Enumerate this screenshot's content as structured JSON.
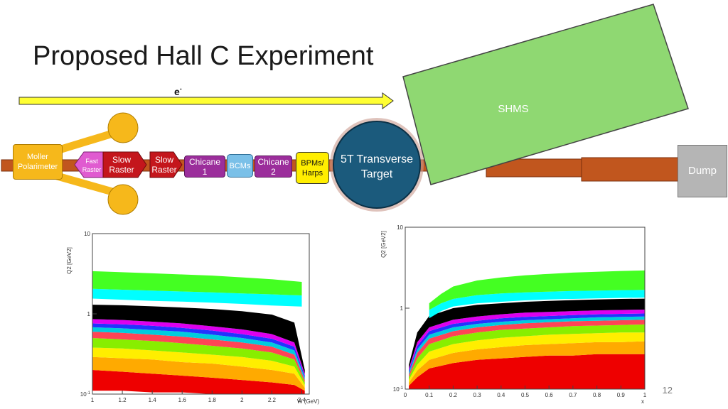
{
  "title": "Proposed Hall C Experiment",
  "beam": {
    "label": "e",
    "charge": "-"
  },
  "shms": {
    "label": "SHMS",
    "color": "#8fd872"
  },
  "components": {
    "moller": "Moller\nPolarimeter",
    "fast_raster": "Fast\nRaster",
    "slow_raster_1": "Slow\nRaster",
    "slow_raster_2": "Slow\nRaster",
    "chicane_1": "Chicane\n1",
    "bcms": "BCMs",
    "chicane_2": "Chicane\n2",
    "bpms": "BPMs/\nHarps",
    "target": "5T Transverse\nTarget",
    "dump": "Dump"
  },
  "colors": {
    "beamline": "#c1561e",
    "moller": "#f6b81b",
    "raster_pink": "#e05bd0",
    "raster_red": "#c4161c",
    "chicane": "#9b2e9b",
    "bcms": "#7ac0e8",
    "bpms": "#ffee00",
    "target": "#1b5a7c",
    "dump": "#b5b5b5",
    "beam_arrow": "#ffff33"
  },
  "slide_number": "12",
  "chart_data": [
    {
      "type": "scatter",
      "xlabel": "W (GeV)",
      "ylabel": "Q2 [GeV2]",
      "xlim": [
        1,
        2.45
      ],
      "ylim": [
        0.1,
        10
      ],
      "yscale": "log",
      "xticks": [
        "1",
        "1.2",
        "1.4",
        "1.6",
        "1.8",
        "2",
        "2.2",
        "2.4"
      ],
      "yticks": [
        "10",
        "1",
        "10-1"
      ],
      "bands": [
        {
          "color": "#ee0000",
          "x": [
            1.0,
            1.2,
            1.4,
            1.6,
            1.8,
            2.0,
            2.2,
            2.35,
            2.42
          ],
          "lower": [
            0.11,
            0.11,
            0.105,
            0.105,
            0.1,
            0.1,
            0.1,
            0.1,
            0.1
          ],
          "upper": [
            0.2,
            0.19,
            0.18,
            0.17,
            0.16,
            0.15,
            0.14,
            0.13,
            0.11
          ]
        },
        {
          "color": "#ffaa00",
          "x": [
            1.0,
            1.2,
            1.4,
            1.6,
            1.8,
            2.0,
            2.2,
            2.35,
            2.42
          ],
          "lower": [
            0.2,
            0.19,
            0.18,
            0.17,
            0.16,
            0.15,
            0.14,
            0.13,
            0.11
          ],
          "upper": [
            0.29,
            0.28,
            0.27,
            0.25,
            0.24,
            0.22,
            0.2,
            0.18,
            0.12
          ]
        },
        {
          "color": "#ffee00",
          "x": [
            1.0,
            1.2,
            1.4,
            1.6,
            1.8,
            2.0,
            2.2,
            2.35,
            2.42
          ],
          "lower": [
            0.29,
            0.28,
            0.27,
            0.25,
            0.24,
            0.22,
            0.2,
            0.18,
            0.12
          ],
          "upper": [
            0.38,
            0.37,
            0.35,
            0.33,
            0.31,
            0.29,
            0.26,
            0.22,
            0.13
          ]
        },
        {
          "color": "#88ee00",
          "x": [
            1.0,
            1.2,
            1.4,
            1.6,
            1.8,
            2.0,
            2.2,
            2.35,
            2.42
          ],
          "lower": [
            0.38,
            0.37,
            0.35,
            0.33,
            0.31,
            0.29,
            0.26,
            0.22,
            0.13
          ],
          "upper": [
            0.5,
            0.48,
            0.46,
            0.43,
            0.4,
            0.37,
            0.33,
            0.27,
            0.14
          ]
        },
        {
          "color": "#ff4455",
          "x": [
            1.0,
            1.2,
            1.4,
            1.6,
            1.8,
            2.0,
            2.2,
            2.35,
            2.42
          ],
          "lower": [
            0.5,
            0.48,
            0.46,
            0.43,
            0.4,
            0.37,
            0.33,
            0.27,
            0.14
          ],
          "upper": [
            0.6,
            0.58,
            0.55,
            0.52,
            0.48,
            0.44,
            0.39,
            0.31,
            0.15
          ]
        },
        {
          "color": "#00ccdd",
          "x": [
            1.0,
            1.2,
            1.4,
            1.6,
            1.8,
            2.0,
            2.2,
            2.35,
            2.42
          ],
          "lower": [
            0.6,
            0.58,
            0.55,
            0.52,
            0.48,
            0.44,
            0.39,
            0.31,
            0.15
          ],
          "upper": [
            0.68,
            0.66,
            0.63,
            0.6,
            0.55,
            0.5,
            0.44,
            0.35,
            0.16
          ]
        },
        {
          "color": "#2233ff",
          "x": [
            1.0,
            1.2,
            1.4,
            1.6,
            1.8,
            2.0,
            2.2,
            2.35,
            2.42
          ],
          "lower": [
            0.68,
            0.66,
            0.63,
            0.6,
            0.55,
            0.5,
            0.44,
            0.35,
            0.16
          ],
          "upper": [
            0.76,
            0.74,
            0.71,
            0.67,
            0.62,
            0.56,
            0.49,
            0.39,
            0.17
          ]
        },
        {
          "color": "#dd00ee",
          "x": [
            1.0,
            1.2,
            1.4,
            1.6,
            1.8,
            2.0,
            2.2,
            2.35,
            2.42
          ],
          "lower": [
            0.76,
            0.74,
            0.71,
            0.67,
            0.62,
            0.56,
            0.49,
            0.39,
            0.17
          ],
          "upper": [
            0.86,
            0.84,
            0.8,
            0.76,
            0.7,
            0.64,
            0.56,
            0.44,
            0.18
          ]
        },
        {
          "color": "#000000",
          "x": [
            1.0,
            1.2,
            1.4,
            1.6,
            1.8,
            2.0,
            2.2,
            2.35,
            2.42
          ],
          "lower": [
            0.86,
            0.84,
            0.8,
            0.76,
            0.7,
            0.64,
            0.56,
            0.44,
            0.18
          ],
          "upper": [
            1.3,
            1.28,
            1.24,
            1.2,
            1.15,
            1.08,
            0.98,
            0.78,
            0.2
          ]
        },
        {
          "color": "#00ffff",
          "x": [
            1.0,
            1.2,
            1.4,
            1.6,
            1.8,
            2.0,
            2.2,
            2.3,
            2.4
          ],
          "lower": [
            1.55,
            1.5,
            1.45,
            1.42,
            1.38,
            1.33,
            1.27,
            1.25,
            1.23
          ],
          "upper": [
            2.05,
            2.0,
            1.95,
            1.9,
            1.85,
            1.8,
            1.75,
            1.72,
            1.7
          ]
        },
        {
          "color": "#44ff22",
          "x": [
            1.0,
            1.2,
            1.4,
            1.6,
            1.8,
            2.0,
            2.2,
            2.3,
            2.4
          ],
          "lower": [
            2.05,
            2.0,
            1.95,
            1.9,
            1.85,
            1.8,
            1.75,
            1.72,
            1.7
          ],
          "upper": [
            3.4,
            3.3,
            3.2,
            3.1,
            3.0,
            2.85,
            2.7,
            2.6,
            2.5
          ]
        }
      ]
    },
    {
      "type": "scatter",
      "xlabel": "x",
      "ylabel": "Q2 [GeV2]",
      "xlim": [
        0,
        1
      ],
      "ylim": [
        0.1,
        10
      ],
      "yscale": "log",
      "xticks": [
        "0",
        "0.1",
        "0.2",
        "0.3",
        "0.4",
        "0.5",
        "0.6",
        "0.7",
        "0.8",
        "0.9",
        "1"
      ],
      "yticks": [
        "10",
        "1",
        "10-1"
      ],
      "bands": [
        {
          "color": "#ee0000",
          "x": [
            0.015,
            0.05,
            0.1,
            0.2,
            0.3,
            0.4,
            0.5,
            0.6,
            0.7,
            0.8,
            0.9,
            1.0
          ],
          "lower": [
            0.1,
            0.1,
            0.1,
            0.1,
            0.1,
            0.1,
            0.1,
            0.1,
            0.1,
            0.1,
            0.1,
            0.1
          ],
          "upper": [
            0.11,
            0.14,
            0.18,
            0.21,
            0.23,
            0.24,
            0.25,
            0.26,
            0.26,
            0.27,
            0.27,
            0.27
          ]
        },
        {
          "color": "#ffaa00",
          "x": [
            0.015,
            0.05,
            0.1,
            0.2,
            0.3,
            0.4,
            0.5,
            0.6,
            0.7,
            0.8,
            0.9,
            1.0
          ],
          "lower": [
            0.11,
            0.14,
            0.18,
            0.21,
            0.23,
            0.24,
            0.25,
            0.26,
            0.26,
            0.27,
            0.27,
            0.27
          ],
          "upper": [
            0.12,
            0.17,
            0.23,
            0.28,
            0.31,
            0.33,
            0.35,
            0.36,
            0.37,
            0.38,
            0.38,
            0.39
          ]
        },
        {
          "color": "#ffee00",
          "x": [
            0.015,
            0.05,
            0.1,
            0.2,
            0.3,
            0.4,
            0.5,
            0.6,
            0.7,
            0.8,
            0.9,
            1.0
          ],
          "lower": [
            0.12,
            0.17,
            0.23,
            0.28,
            0.31,
            0.33,
            0.35,
            0.36,
            0.37,
            0.38,
            0.38,
            0.39
          ],
          "upper": [
            0.13,
            0.2,
            0.29,
            0.36,
            0.4,
            0.43,
            0.45,
            0.47,
            0.48,
            0.49,
            0.5,
            0.5
          ]
        },
        {
          "color": "#88ee00",
          "x": [
            0.015,
            0.05,
            0.1,
            0.2,
            0.3,
            0.4,
            0.5,
            0.6,
            0.7,
            0.8,
            0.9,
            1.0
          ],
          "lower": [
            0.13,
            0.2,
            0.29,
            0.36,
            0.4,
            0.43,
            0.45,
            0.47,
            0.48,
            0.49,
            0.5,
            0.5
          ],
          "upper": [
            0.14,
            0.24,
            0.36,
            0.45,
            0.5,
            0.54,
            0.56,
            0.58,
            0.6,
            0.61,
            0.62,
            0.63
          ]
        },
        {
          "color": "#ff4455",
          "x": [
            0.015,
            0.05,
            0.1,
            0.2,
            0.3,
            0.4,
            0.5,
            0.6,
            0.7,
            0.8,
            0.9,
            1.0
          ],
          "lower": [
            0.14,
            0.24,
            0.36,
            0.45,
            0.5,
            0.54,
            0.56,
            0.58,
            0.6,
            0.61,
            0.62,
            0.63
          ],
          "upper": [
            0.15,
            0.28,
            0.42,
            0.52,
            0.58,
            0.62,
            0.65,
            0.67,
            0.69,
            0.7,
            0.71,
            0.72
          ]
        },
        {
          "color": "#00ccdd",
          "x": [
            0.015,
            0.05,
            0.1,
            0.2,
            0.3,
            0.4,
            0.5,
            0.6,
            0.7,
            0.8,
            0.9,
            1.0
          ],
          "lower": [
            0.15,
            0.28,
            0.42,
            0.52,
            0.58,
            0.62,
            0.65,
            0.67,
            0.69,
            0.7,
            0.71,
            0.72
          ],
          "upper": [
            0.16,
            0.31,
            0.47,
            0.58,
            0.64,
            0.68,
            0.71,
            0.73,
            0.75,
            0.77,
            0.78,
            0.79
          ]
        },
        {
          "color": "#2233ff",
          "x": [
            0.015,
            0.05,
            0.1,
            0.2,
            0.3,
            0.4,
            0.5,
            0.6,
            0.7,
            0.8,
            0.9,
            1.0
          ],
          "lower": [
            0.16,
            0.31,
            0.47,
            0.58,
            0.64,
            0.68,
            0.71,
            0.73,
            0.75,
            0.77,
            0.78,
            0.79
          ],
          "upper": [
            0.17,
            0.34,
            0.52,
            0.64,
            0.7,
            0.75,
            0.78,
            0.8,
            0.82,
            0.84,
            0.85,
            0.86
          ]
        },
        {
          "color": "#dd00ee",
          "x": [
            0.015,
            0.05,
            0.1,
            0.2,
            0.3,
            0.4,
            0.5,
            0.6,
            0.7,
            0.8,
            0.9,
            1.0
          ],
          "lower": [
            0.17,
            0.34,
            0.52,
            0.64,
            0.7,
            0.75,
            0.78,
            0.8,
            0.82,
            0.84,
            0.85,
            0.86
          ],
          "upper": [
            0.18,
            0.38,
            0.58,
            0.72,
            0.79,
            0.84,
            0.88,
            0.9,
            0.92,
            0.94,
            0.95,
            0.96
          ]
        },
        {
          "color": "#000000",
          "x": [
            0.015,
            0.05,
            0.1,
            0.2,
            0.3,
            0.4,
            0.5,
            0.6,
            0.7,
            0.8,
            0.9,
            1.0
          ],
          "lower": [
            0.18,
            0.38,
            0.58,
            0.72,
            0.79,
            0.84,
            0.88,
            0.9,
            0.92,
            0.94,
            0.95,
            0.96
          ],
          "upper": [
            0.2,
            0.5,
            0.8,
            1.0,
            1.1,
            1.15,
            1.2,
            1.23,
            1.26,
            1.28,
            1.3,
            1.31
          ]
        },
        {
          "color": "#00ffff",
          "x": [
            0.1,
            0.15,
            0.2,
            0.3,
            0.4,
            0.5,
            0.6,
            0.7,
            0.8,
            0.9,
            1.0
          ],
          "lower": [
            0.75,
            0.92,
            1.05,
            1.15,
            1.2,
            1.25,
            1.28,
            1.3,
            1.32,
            1.34,
            1.35
          ],
          "upper": [
            0.95,
            1.15,
            1.3,
            1.45,
            1.52,
            1.57,
            1.6,
            1.63,
            1.65,
            1.67,
            1.68
          ]
        },
        {
          "color": "#44ff22",
          "x": [
            0.1,
            0.15,
            0.2,
            0.3,
            0.4,
            0.5,
            0.6,
            0.7,
            0.8,
            0.9,
            1.0
          ],
          "lower": [
            0.95,
            1.15,
            1.3,
            1.45,
            1.52,
            1.57,
            1.6,
            1.63,
            1.65,
            1.67,
            1.68
          ],
          "upper": [
            1.15,
            1.5,
            1.85,
            2.2,
            2.4,
            2.55,
            2.65,
            2.75,
            2.82,
            2.88,
            2.92
          ]
        }
      ]
    }
  ]
}
